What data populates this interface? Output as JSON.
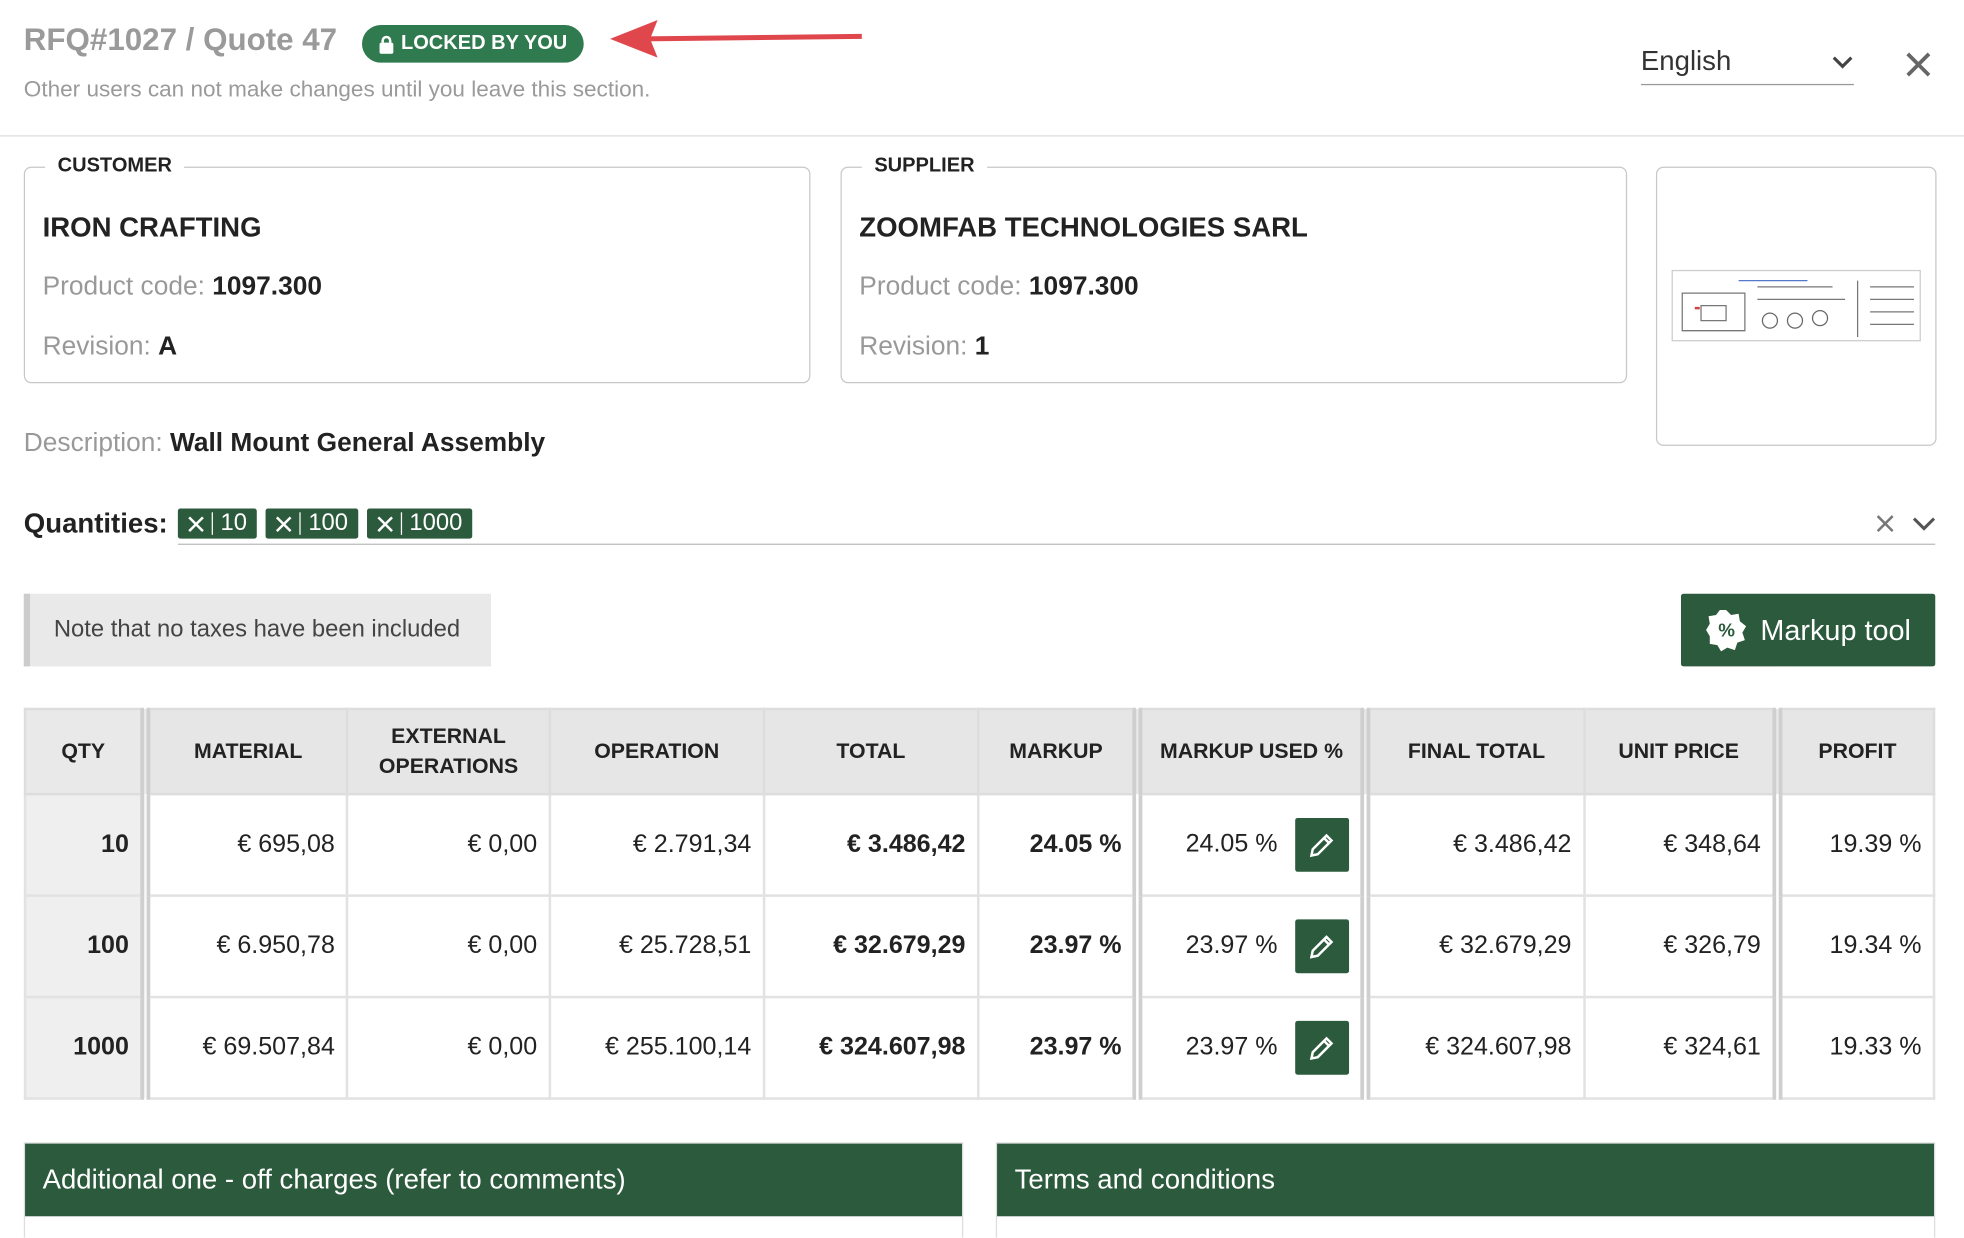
{
  "header": {
    "title": "RFQ#1027 / Quote 47",
    "badge": "LOCKED BY YOU",
    "subtitle": "Other users can not make changes until you leave this section.",
    "language": "English"
  },
  "customer": {
    "legend": "CUSTOMER",
    "name": "IRON CRAFTING",
    "product_code_label": "Product code:",
    "product_code": "1097.300",
    "revision_label": "Revision:",
    "revision": "A"
  },
  "supplier": {
    "legend": "SUPPLIER",
    "name": "ZOOMFAB TECHNOLOGIES SARL",
    "product_code_label": "Product code:",
    "product_code": "1097.300",
    "revision_label": "Revision:",
    "revision": "1"
  },
  "description": {
    "label": "Description:",
    "value": "Wall Mount General Assembly"
  },
  "quantities": {
    "label": "Quantities:",
    "tags": [
      "10",
      "100",
      "1000"
    ]
  },
  "note": "Note that no taxes have been included",
  "markup_button": {
    "icon": "%",
    "label": "Markup tool"
  },
  "table": {
    "headers": [
      "QTY",
      "MATERIAL",
      "EXTERNAL OPERATIONS",
      "OPERATION",
      "TOTAL",
      "MARKUP",
      "MARKUP USED %",
      "FINAL TOTAL",
      "UNIT PRICE",
      "PROFIT"
    ],
    "rows": [
      [
        "10",
        "€ 695,08",
        "€ 0,00",
        "€ 2.791,34",
        "€ 3.486,42",
        "24.05 %",
        "24.05 %",
        "€ 3.486,42",
        "€ 348,64",
        "19.39 %"
      ],
      [
        "100",
        "€ 6.950,78",
        "€ 0,00",
        "€ 25.728,51",
        "€ 32.679,29",
        "23.97 %",
        "23.97 %",
        "€ 32.679,29",
        "€ 326,79",
        "19.34 %"
      ],
      [
        "1000",
        "€ 69.507,84",
        "€ 0,00",
        "€ 255.100,14",
        "€ 324.607,98",
        "23.97 %",
        "23.97 %",
        "€ 324.607,98",
        "€ 324,61",
        "19.33 %"
      ]
    ]
  },
  "panels": [
    "Additional one - off charges (refer to comments)",
    "Terms and conditions"
  ]
}
